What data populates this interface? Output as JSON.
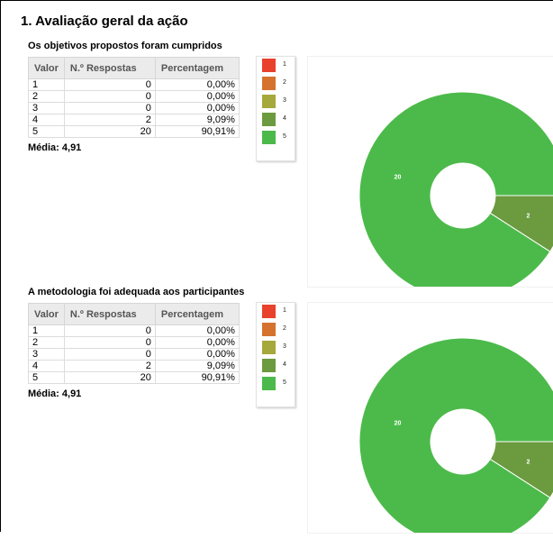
{
  "page": {
    "title": "1. Avaliação geral da ação"
  },
  "table_headers": [
    "Valor",
    "N.º Respostas",
    "Percentagem"
  ],
  "legend_colors": [
    "#e8412c",
    "#d4722e",
    "#a5a83a",
    "#6b9a3f",
    "#4cba4a"
  ],
  "chart_data": [
    {
      "type": "pie",
      "title": "Os objetivos propostos foram cumpridos",
      "categories": [
        "1",
        "2",
        "3",
        "4",
        "5"
      ],
      "values": [
        0,
        0,
        0,
        2,
        20
      ],
      "slice_labels": [
        "",
        "",
        "",
        "2",
        "20"
      ],
      "percentages": [
        "0,00%",
        "0,00%",
        "0,00%",
        "9,09%",
        "90,91%"
      ],
      "average": "Média: 4,91",
      "legend": "right"
    },
    {
      "type": "pie",
      "title": "A metodologia foi adequada aos participantes",
      "categories": [
        "1",
        "2",
        "3",
        "4",
        "5"
      ],
      "values": [
        0,
        0,
        0,
        2,
        20
      ],
      "slice_labels": [
        "",
        "",
        "",
        "2",
        "20"
      ],
      "percentages": [
        "0,00%",
        "0,00%",
        "0,00%",
        "9,09%",
        "90,91%"
      ],
      "average": "Média: 4,91",
      "legend": "right"
    }
  ]
}
